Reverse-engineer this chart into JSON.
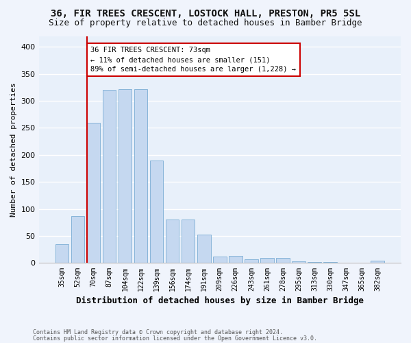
{
  "title": "36, FIR TREES CRESCENT, LOSTOCK HALL, PRESTON, PR5 5SL",
  "subtitle": "Size of property relative to detached houses in Bamber Bridge",
  "xlabel": "Distribution of detached houses by size in Bamber Bridge",
  "ylabel": "Number of detached properties",
  "bar_labels": [
    "35sqm",
    "52sqm",
    "70sqm",
    "87sqm",
    "104sqm",
    "122sqm",
    "139sqm",
    "156sqm",
    "174sqm",
    "191sqm",
    "209sqm",
    "226sqm",
    "243sqm",
    "261sqm",
    "278sqm",
    "295sqm",
    "313sqm",
    "330sqm",
    "347sqm",
    "365sqm",
    "382sqm"
  ],
  "bar_values": [
    35,
    87,
    260,
    320,
    322,
    322,
    190,
    80,
    80,
    52,
    12,
    13,
    7,
    9,
    9,
    3,
    2,
    2,
    1,
    1,
    4
  ],
  "bar_color": "#c5d8f0",
  "bar_edge_color": "#7aadd4",
  "property_line_color": "#cc0000",
  "annotation_box_color": "#cc0000",
  "annotation_line1": "36 FIR TREES CRESCENT: 73sqm",
  "annotation_line2": "← 11% of detached houses are smaller (151)",
  "annotation_line3": "89% of semi-detached houses are larger (1,228) →",
  "ylim": [
    0,
    420
  ],
  "footnote1": "Contains HM Land Registry data © Crown copyright and database right 2024.",
  "footnote2": "Contains public sector information licensed under the Open Government Licence v3.0.",
  "background_color": "#e8f0fa",
  "grid_color": "#ffffff",
  "fig_background": "#f0f4fc"
}
